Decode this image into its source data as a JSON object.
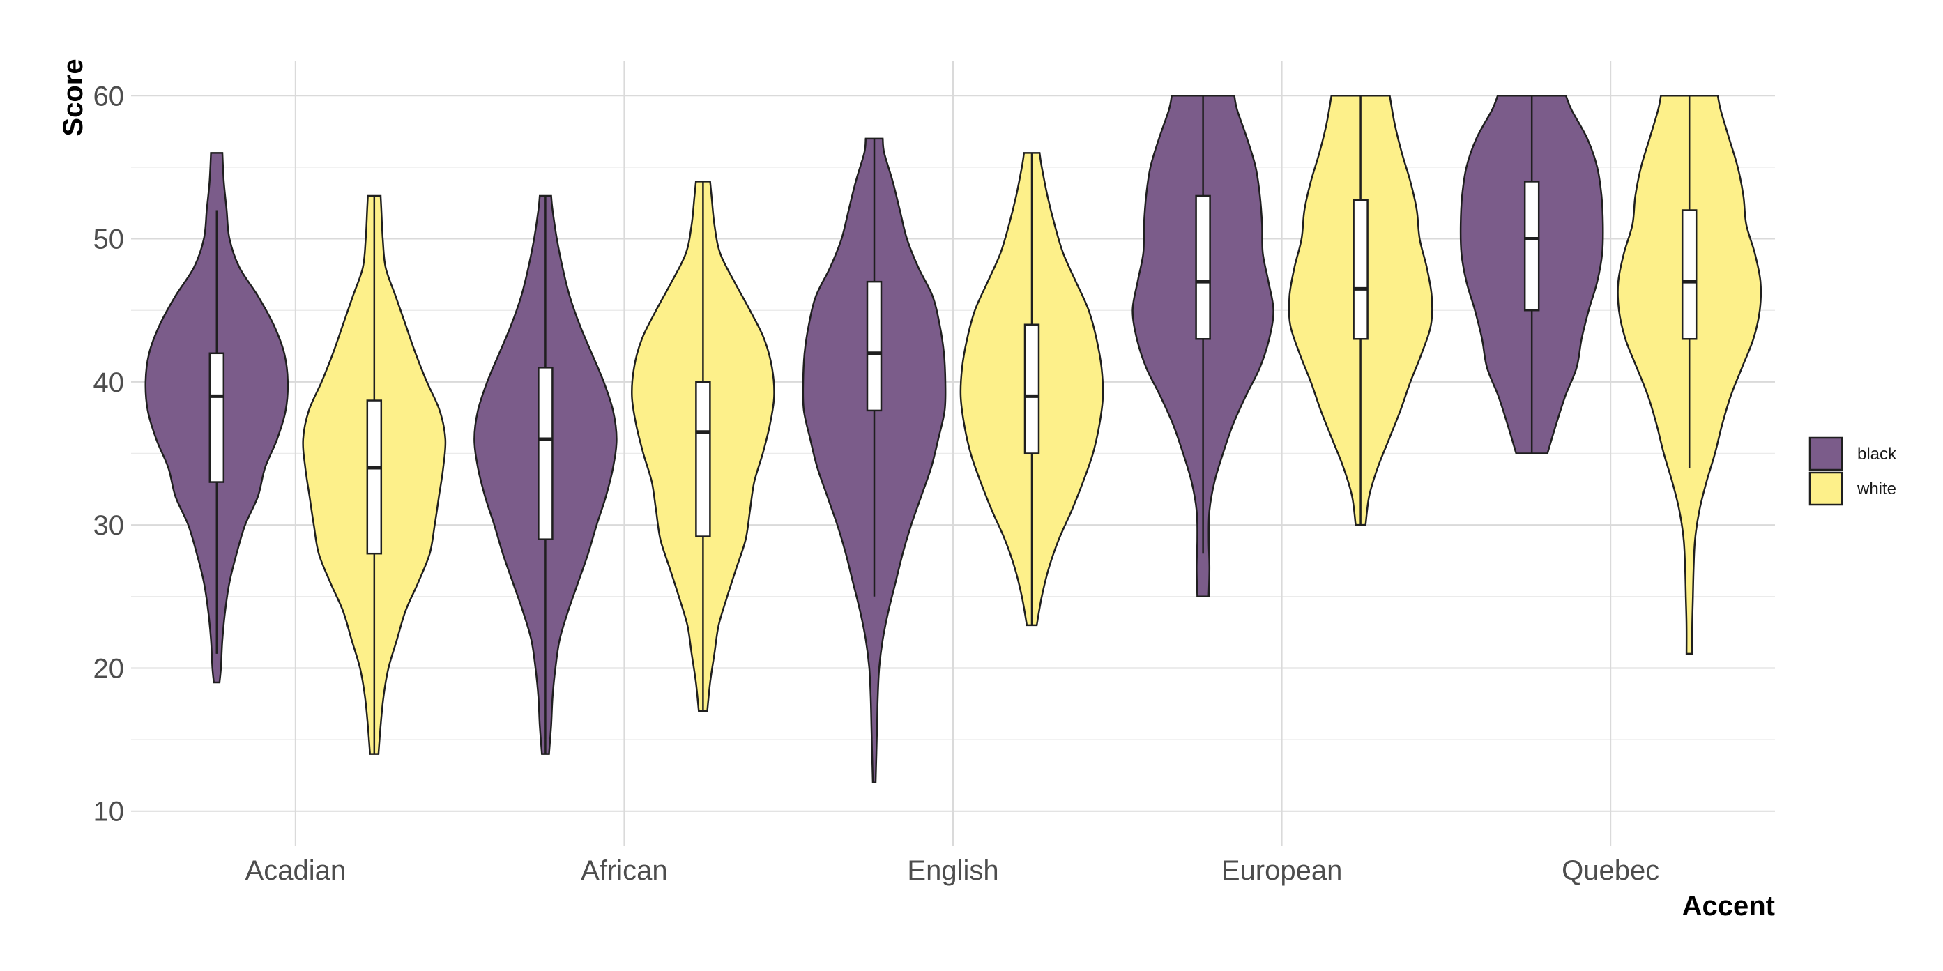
{
  "chart_data": {
    "type": "violin",
    "xlabel": "Accent",
    "ylabel": "Score",
    "categories": [
      "Acadian",
      "African",
      "English",
      "European",
      "Quebec"
    ],
    "ylim": [
      10,
      62
    ],
    "yticks": [
      10,
      20,
      30,
      40,
      50,
      60
    ],
    "grid": true,
    "legend_position": "right",
    "series": [
      {
        "name": "black",
        "color": "#7b5c8a",
        "stats": [
          {
            "min": 19,
            "max": 56,
            "q1": 33,
            "median": 39,
            "q3": 42,
            "wlo": 21,
            "whi": 52,
            "profile": [
              [
                19,
                0.04
              ],
              [
                20,
                0.06
              ],
              [
                22,
                0.08
              ],
              [
                24,
                0.12
              ],
              [
                26,
                0.18
              ],
              [
                28,
                0.28
              ],
              [
                30,
                0.4
              ],
              [
                32,
                0.58
              ],
              [
                34,
                0.68
              ],
              [
                36,
                0.85
              ],
              [
                38,
                0.97
              ],
              [
                40,
                1.0
              ],
              [
                42,
                0.95
              ],
              [
                44,
                0.8
              ],
              [
                46,
                0.58
              ],
              [
                48,
                0.32
              ],
              [
                50,
                0.18
              ],
              [
                52,
                0.14
              ],
              [
                54,
                0.1
              ],
              [
                56,
                0.08
              ]
            ]
          },
          {
            "min": 14,
            "max": 53,
            "q1": 29,
            "median": 36,
            "q3": 41,
            "wlo": 14,
            "whi": 53,
            "profile": [
              [
                14,
                0.05
              ],
              [
                16,
                0.08
              ],
              [
                18,
                0.1
              ],
              [
                20,
                0.14
              ],
              [
                22,
                0.2
              ],
              [
                24,
                0.32
              ],
              [
                26,
                0.46
              ],
              [
                28,
                0.6
              ],
              [
                30,
                0.72
              ],
              [
                32,
                0.85
              ],
              [
                34,
                0.95
              ],
              [
                36,
                1.0
              ],
              [
                38,
                0.95
              ],
              [
                40,
                0.82
              ],
              [
                42,
                0.65
              ],
              [
                44,
                0.48
              ],
              [
                46,
                0.34
              ],
              [
                48,
                0.24
              ],
              [
                50,
                0.16
              ],
              [
                52,
                0.1
              ],
              [
                53,
                0.08
              ]
            ]
          },
          {
            "min": 12,
            "max": 57,
            "q1": 38,
            "median": 42,
            "q3": 47,
            "wlo": 25,
            "whi": 57,
            "profile": [
              [
                12,
                0.02
              ],
              [
                14,
                0.03
              ],
              [
                16,
                0.04
              ],
              [
                18,
                0.05
              ],
              [
                20,
                0.07
              ],
              [
                22,
                0.12
              ],
              [
                24,
                0.2
              ],
              [
                26,
                0.3
              ],
              [
                28,
                0.4
              ],
              [
                30,
                0.52
              ],
              [
                32,
                0.66
              ],
              [
                34,
                0.8
              ],
              [
                36,
                0.9
              ],
              [
                38,
                0.99
              ],
              [
                40,
                1.0
              ],
              [
                42,
                0.98
              ],
              [
                44,
                0.92
              ],
              [
                46,
                0.82
              ],
              [
                48,
                0.62
              ],
              [
                50,
                0.46
              ],
              [
                52,
                0.36
              ],
              [
                54,
                0.26
              ],
              [
                56,
                0.14
              ],
              [
                57,
                0.12
              ]
            ]
          },
          {
            "min": 25,
            "max": 60,
            "q1": 43,
            "median": 47,
            "q3": 53,
            "wlo": 28,
            "whi": 60,
            "profile": [
              [
                25,
                0.08
              ],
              [
                27,
                0.09
              ],
              [
                29,
                0.08
              ],
              [
                31,
                0.09
              ],
              [
                33,
                0.16
              ],
              [
                35,
                0.28
              ],
              [
                37,
                0.42
              ],
              [
                39,
                0.6
              ],
              [
                41,
                0.8
              ],
              [
                43,
                0.93
              ],
              [
                45,
                0.99
              ],
              [
                47,
                0.92
              ],
              [
                49,
                0.84
              ],
              [
                51,
                0.83
              ],
              [
                53,
                0.8
              ],
              [
                55,
                0.74
              ],
              [
                57,
                0.62
              ],
              [
                59,
                0.48
              ],
              [
                60,
                0.44
              ]
            ]
          },
          {
            "min": 35,
            "max": 60,
            "q1": 45,
            "median": 50,
            "q3": 54,
            "wlo": 35,
            "whi": 60,
            "profile": [
              [
                35,
                0.22
              ],
              [
                37,
                0.34
              ],
              [
                39,
                0.47
              ],
              [
                41,
                0.63
              ],
              [
                43,
                0.7
              ],
              [
                45,
                0.8
              ],
              [
                47,
                0.92
              ],
              [
                49,
                0.99
              ],
              [
                51,
                1.0
              ],
              [
                53,
                0.98
              ],
              [
                55,
                0.92
              ],
              [
                57,
                0.78
              ],
              [
                59,
                0.56
              ],
              [
                60,
                0.48
              ]
            ]
          }
        ]
      },
      {
        "name": "white",
        "color": "#fdf08a",
        "stats": [
          {
            "min": 14,
            "max": 53,
            "q1": 28,
            "median": 34,
            "q3": 38.7,
            "wlo": 14,
            "whi": 53,
            "profile": [
              [
                14,
                0.06
              ],
              [
                16,
                0.09
              ],
              [
                18,
                0.13
              ],
              [
                20,
                0.2
              ],
              [
                22,
                0.32
              ],
              [
                24,
                0.44
              ],
              [
                26,
                0.62
              ],
              [
                28,
                0.78
              ],
              [
                30,
                0.85
              ],
              [
                32,
                0.91
              ],
              [
                34,
                0.97
              ],
              [
                36,
                1.0
              ],
              [
                38,
                0.92
              ],
              [
                40,
                0.74
              ],
              [
                42,
                0.58
              ],
              [
                44,
                0.44
              ],
              [
                46,
                0.3
              ],
              [
                48,
                0.16
              ],
              [
                50,
                0.12
              ],
              [
                52,
                0.1
              ],
              [
                53,
                0.09
              ]
            ]
          },
          {
            "min": 17,
            "max": 54,
            "q1": 29.2,
            "median": 36.5,
            "q3": 40,
            "wlo": 17,
            "whi": 54,
            "profile": [
              [
                17,
                0.06
              ],
              [
                19,
                0.1
              ],
              [
                21,
                0.16
              ],
              [
                23,
                0.22
              ],
              [
                25,
                0.34
              ],
              [
                27,
                0.47
              ],
              [
                29,
                0.6
              ],
              [
                31,
                0.66
              ],
              [
                33,
                0.72
              ],
              [
                35,
                0.84
              ],
              [
                37,
                0.94
              ],
              [
                39,
                1.0
              ],
              [
                41,
                0.97
              ],
              [
                43,
                0.86
              ],
              [
                45,
                0.66
              ],
              [
                47,
                0.44
              ],
              [
                49,
                0.24
              ],
              [
                51,
                0.16
              ],
              [
                53,
                0.12
              ],
              [
                54,
                0.1
              ]
            ]
          },
          {
            "min": 23,
            "max": 56,
            "q1": 35,
            "median": 39,
            "q3": 44,
            "wlo": 23,
            "whi": 56,
            "profile": [
              [
                23,
                0.07
              ],
              [
                25,
                0.14
              ],
              [
                27,
                0.24
              ],
              [
                29,
                0.38
              ],
              [
                31,
                0.56
              ],
              [
                33,
                0.72
              ],
              [
                35,
                0.86
              ],
              [
                37,
                0.95
              ],
              [
                39,
                1.0
              ],
              [
                41,
                0.98
              ],
              [
                43,
                0.91
              ],
              [
                45,
                0.8
              ],
              [
                47,
                0.62
              ],
              [
                49,
                0.44
              ],
              [
                51,
                0.32
              ],
              [
                53,
                0.22
              ],
              [
                55,
                0.14
              ],
              [
                56,
                0.11
              ]
            ]
          },
          {
            "min": 30,
            "max": 60,
            "q1": 43,
            "median": 46.5,
            "q3": 52.7,
            "wlo": 30,
            "whi": 60,
            "profile": [
              [
                30,
                0.07
              ],
              [
                32,
                0.12
              ],
              [
                34,
                0.24
              ],
              [
                36,
                0.4
              ],
              [
                38,
                0.56
              ],
              [
                40,
                0.7
              ],
              [
                42,
                0.86
              ],
              [
                44,
                0.99
              ],
              [
                46,
                1.0
              ],
              [
                48,
                0.93
              ],
              [
                50,
                0.83
              ],
              [
                52,
                0.79
              ],
              [
                54,
                0.7
              ],
              [
                56,
                0.58
              ],
              [
                58,
                0.48
              ],
              [
                60,
                0.41
              ]
            ]
          },
          {
            "min": 21,
            "max": 60,
            "q1": 43,
            "median": 47,
            "q3": 52,
            "wlo": 34,
            "whi": 60,
            "profile": [
              [
                21,
                0.04
              ],
              [
                23,
                0.04
              ],
              [
                25,
                0.05
              ],
              [
                27,
                0.06
              ],
              [
                29,
                0.08
              ],
              [
                31,
                0.14
              ],
              [
                33,
                0.24
              ],
              [
                35,
                0.36
              ],
              [
                37,
                0.46
              ],
              [
                39,
                0.58
              ],
              [
                41,
                0.74
              ],
              [
                43,
                0.9
              ],
              [
                45,
                0.99
              ],
              [
                47,
                1.0
              ],
              [
                49,
                0.92
              ],
              [
                51,
                0.8
              ],
              [
                53,
                0.76
              ],
              [
                55,
                0.68
              ],
              [
                57,
                0.56
              ],
              [
                59,
                0.44
              ],
              [
                60,
                0.4
              ]
            ]
          }
        ]
      }
    ]
  }
}
